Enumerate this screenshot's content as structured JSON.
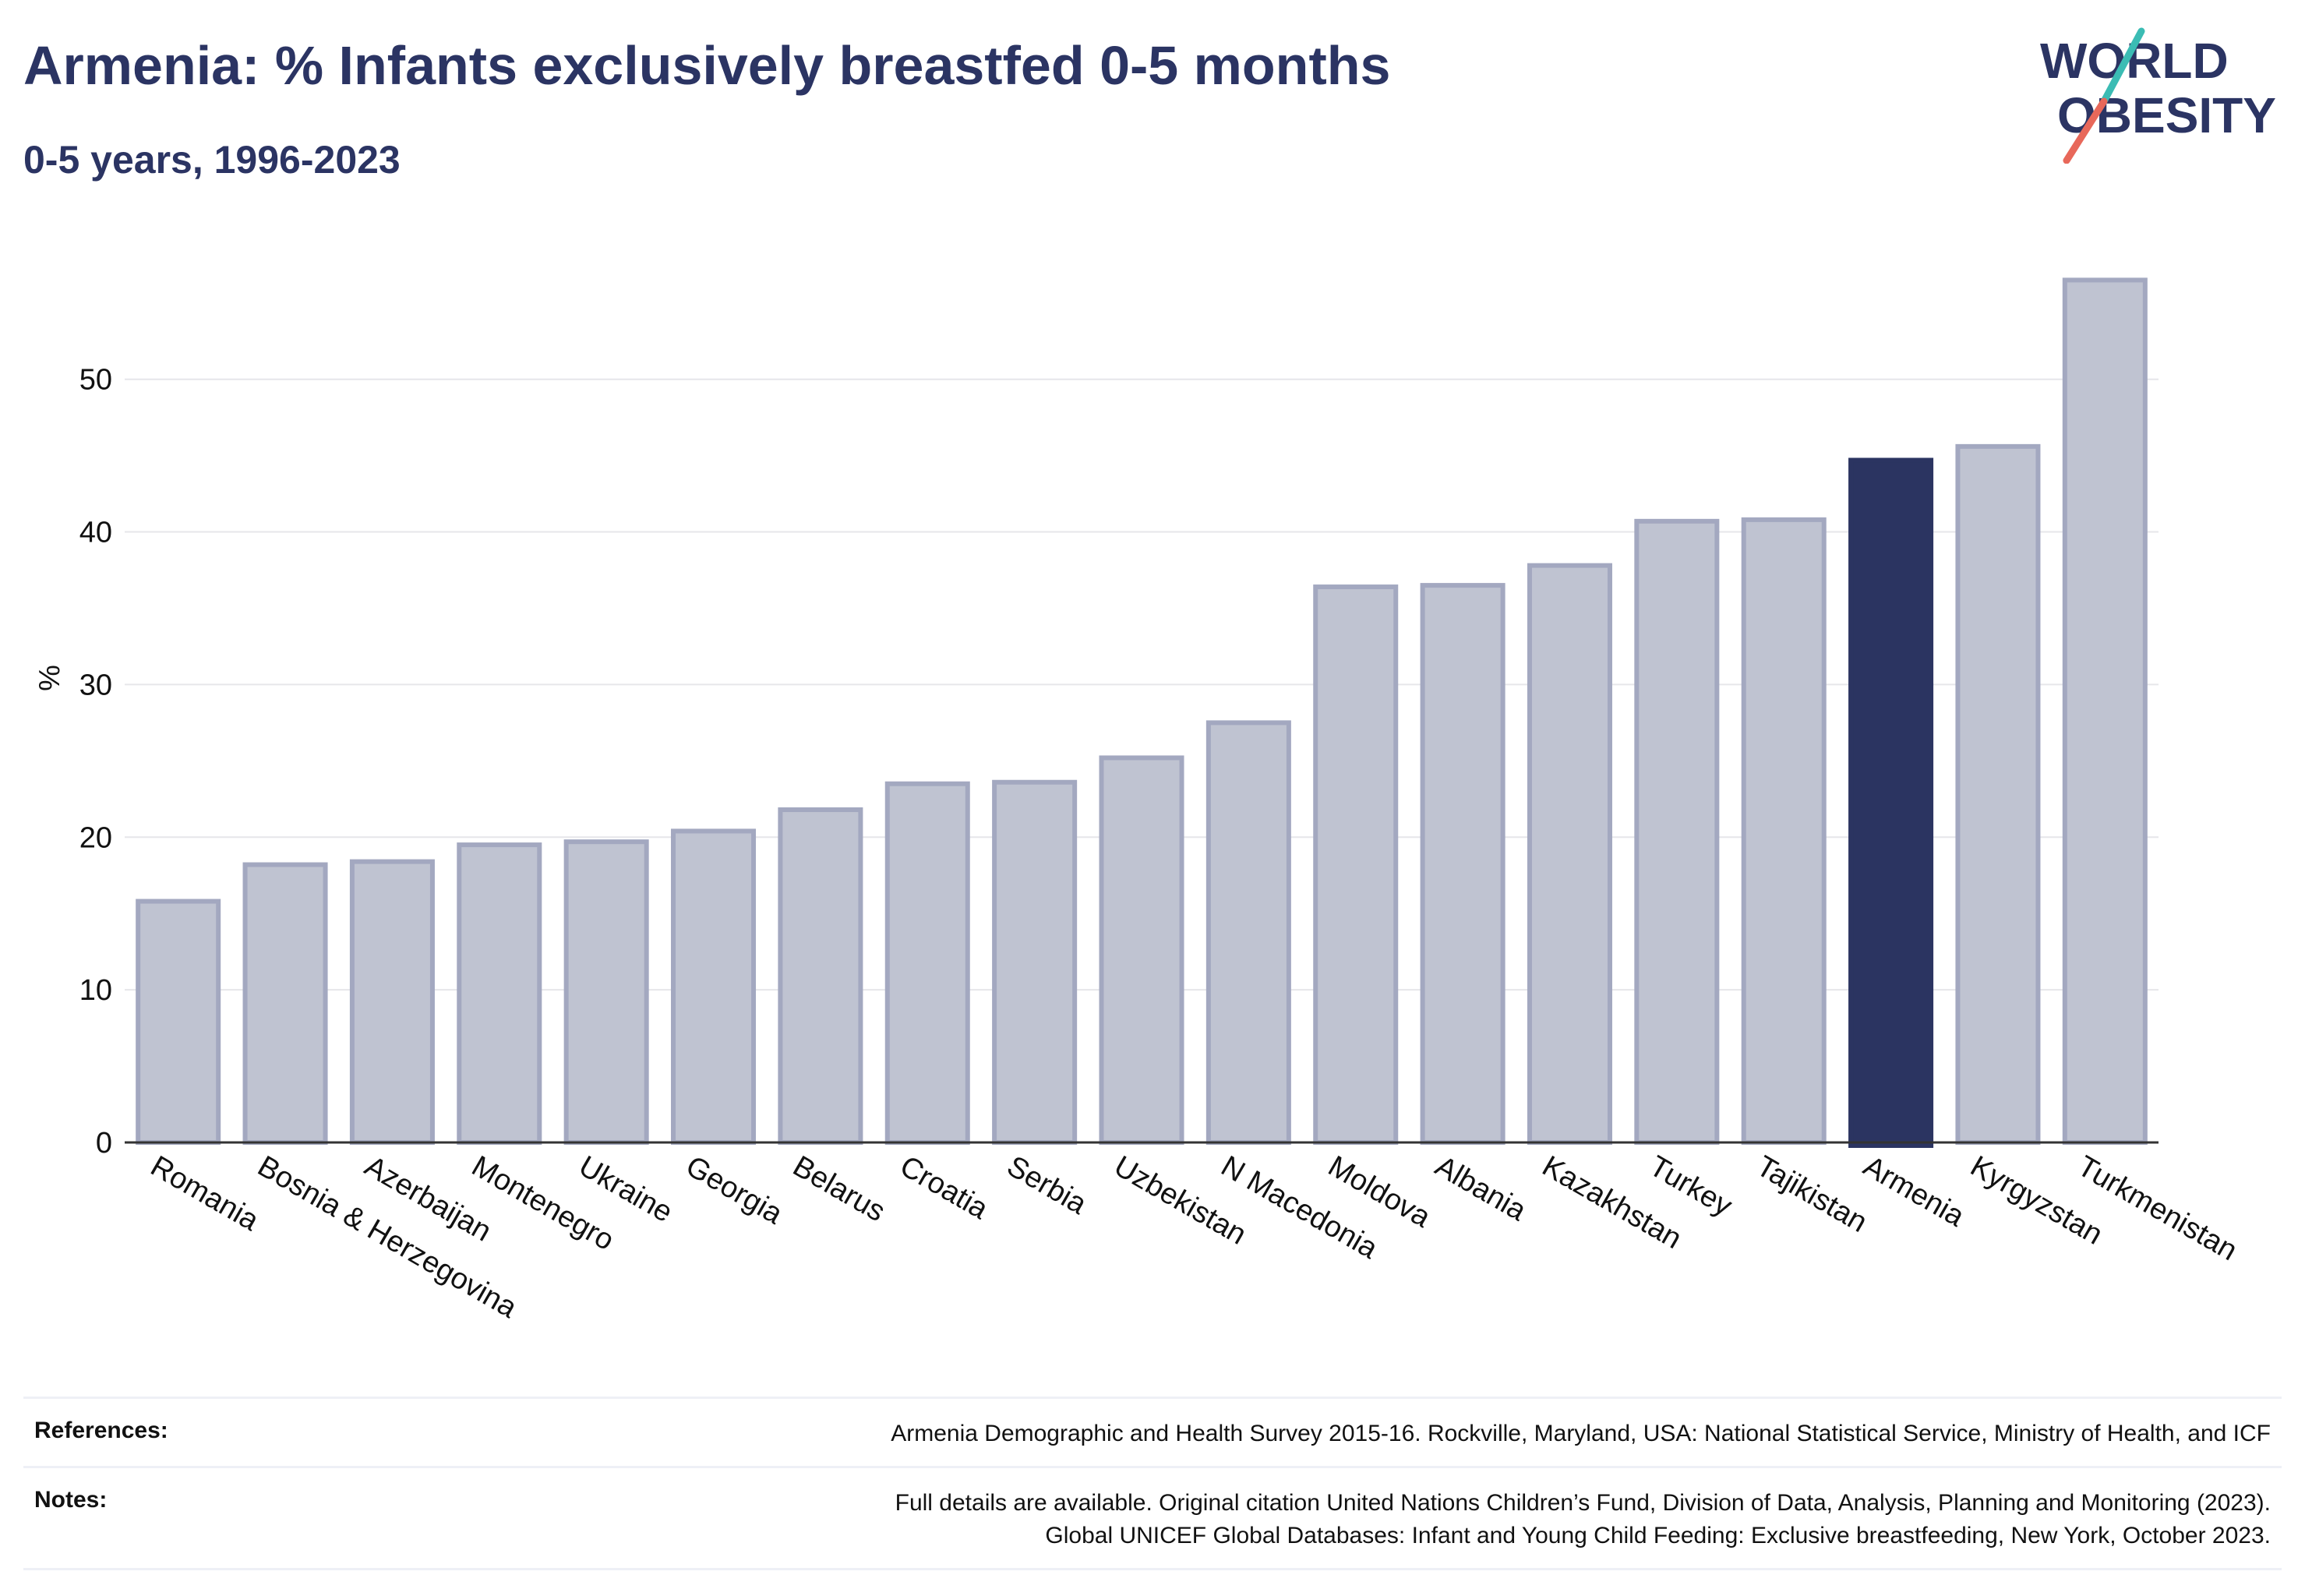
{
  "header": {
    "title": "Armenia: % Infants exclusively breastfed 0-5 months",
    "subtitle": "0-5 years, 1996-2023"
  },
  "logo": {
    "line1": "WORLD",
    "line2": "OBESITY"
  },
  "colors": {
    "bar": "#bfc3d1",
    "bar_stroke": "#a3a8c0",
    "highlight": "#2b3461",
    "title": "#2b3463",
    "logo_teal": "#3bbcb4",
    "logo_red": "#e8685a"
  },
  "chart_data": {
    "type": "bar",
    "title": "Armenia: % Infants exclusively breastfed 0-5 months",
    "subtitle": "0-5 years, 1996-2023",
    "xlabel": "",
    "ylabel": "%",
    "ylim": [
      0,
      58
    ],
    "yticks": [
      0,
      10,
      20,
      30,
      40,
      50
    ],
    "grid": true,
    "highlight": "Armenia",
    "categories": [
      "Romania",
      "Bosnia & Herzegovina",
      "Azerbaijan",
      "Montenegro",
      "Ukraine",
      "Georgia",
      "Belarus",
      "Croatia",
      "Serbia",
      "Uzbekistan",
      "N Macedonia",
      "Moldova",
      "Albania",
      "Kazakhstan",
      "Turkey",
      "Tajikistan",
      "Armenia",
      "Kyrgyzstan",
      "Turkmenistan"
    ],
    "values": [
      15.8,
      18.2,
      18.4,
      19.5,
      19.7,
      20.4,
      21.8,
      23.5,
      23.6,
      25.2,
      27.5,
      36.4,
      36.5,
      37.8,
      40.7,
      40.8,
      44.7,
      45.6,
      56.5
    ]
  },
  "footer": {
    "references_label": "References:",
    "references_text": "Armenia Demographic and Health Survey 2015-16. Rockville, Maryland, USA: National Statistical Service, Ministry of Health, and ICF",
    "notes_label": "Notes:",
    "notes_line1": "Full details are available. Original citation United Nations Children’s Fund, Division of Data, Analysis, Planning and Monitoring (2023).",
    "notes_line2": "Global UNICEF Global Databases: Infant and Young Child Feeding: Exclusive breastfeeding, New York, October 2023."
  }
}
